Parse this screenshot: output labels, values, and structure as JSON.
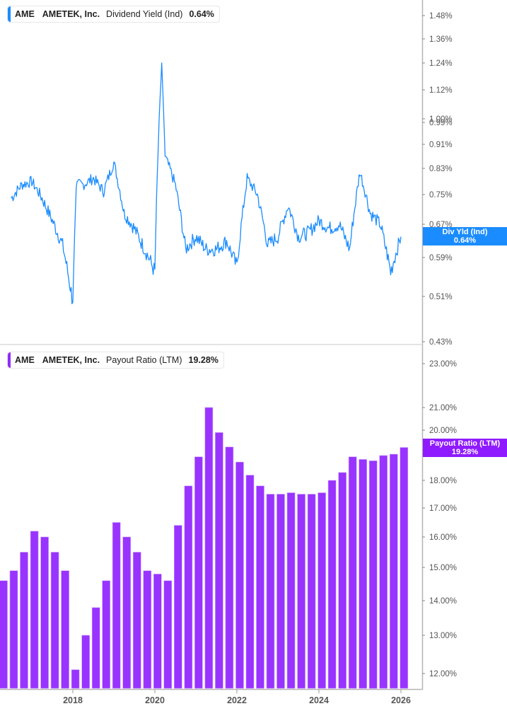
{
  "top_panel": {
    "legend": {
      "ticker": "AME",
      "company": "AMETEK, Inc.",
      "metric": "Dividend Yield (Ind)",
      "value": "0.64%",
      "color": "#1a8cff"
    },
    "flag": {
      "line1": "Div Yld (Ind)",
      "line2": "0.64%",
      "color": "#1a8cff"
    },
    "y_ticks": [
      "1.48%",
      "1.36%",
      "1.24%",
      "1.12%",
      "1.00%",
      "0.99%",
      "0.91%",
      "0.83%",
      "0.75%",
      "0.67%",
      "0.59%",
      "0.51%",
      "0.43%"
    ]
  },
  "bottom_panel": {
    "legend": {
      "ticker": "AME",
      "company": "AMETEK, Inc.",
      "metric": "Payout Ratio (LTM)",
      "value": "19.28%",
      "color": "#8f2bff"
    },
    "flag": {
      "line1": "Payout Ratio (LTM)",
      "line2": "19.28%",
      "color": "#8f1aff"
    },
    "y_ticks": [
      "23.00%",
      "21.00%",
      "20.00%",
      "19.00%",
      "18.00%",
      "17.00%",
      "16.00%",
      "15.00%",
      "14.00%",
      "13.00%",
      "12.00%"
    ]
  },
  "x_axis": {
    "ticks": [
      "2018",
      "2020",
      "2022",
      "2024",
      "2026"
    ]
  },
  "chart_data": [
    {
      "type": "line",
      "title": "AME AMETEK, Inc. Dividend Yield (Ind)",
      "series": [
        {
          "name": "Dividend Yield (Ind)",
          "color": "#1a8cff",
          "x": [
            "2016-07",
            "2016-10",
            "2017-01",
            "2017-04",
            "2017-07",
            "2017-10",
            "2018-01",
            "2018-02",
            "2018-04",
            "2018-07",
            "2018-10",
            "2019-01",
            "2019-04",
            "2019-07",
            "2019-10",
            "2020-01",
            "2020-03",
            "2020-04",
            "2020-07",
            "2020-10",
            "2021-01",
            "2021-04",
            "2021-07",
            "2021-10",
            "2022-01",
            "2022-04",
            "2022-07",
            "2022-10",
            "2023-01",
            "2023-04",
            "2023-07",
            "2023-10",
            "2024-01",
            "2024-04",
            "2024-07",
            "2024-10",
            "2025-01",
            "2025-04",
            "2025-07",
            "2025-10",
            "2026-01"
          ],
          "values": [
            0.74,
            0.78,
            0.79,
            0.74,
            0.68,
            0.62,
            0.5,
            0.78,
            0.78,
            0.8,
            0.76,
            0.85,
            0.7,
            0.66,
            0.61,
            0.56,
            1.24,
            0.87,
            0.78,
            0.61,
            0.64,
            0.61,
            0.61,
            0.63,
            0.57,
            0.8,
            0.75,
            0.62,
            0.64,
            0.72,
            0.64,
            0.65,
            0.68,
            0.66,
            0.67,
            0.61,
            0.82,
            0.7,
            0.67,
            0.56,
            0.64
          ]
        }
      ],
      "ylabel": "",
      "xlabel": "",
      "ylim": [
        0.43,
        1.52
      ],
      "y_ticks": [
        "0.43%",
        "0.51%",
        "0.59%",
        "0.67%",
        "0.75%",
        "0.83%",
        "0.91%",
        "0.99%",
        "1.00%",
        "1.12%",
        "1.24%",
        "1.36%",
        "1.48%"
      ],
      "current_value": "0.64%"
    },
    {
      "type": "bar",
      "title": "AME AMETEK, Inc. Payout Ratio (LTM)",
      "categories": [
        "2016Q3",
        "2016Q4",
        "2017Q1",
        "2017Q2",
        "2017Q3",
        "2017Q4",
        "2018Q1",
        "2018Q2",
        "2018Q3",
        "2018Q4",
        "2019Q1",
        "2019Q2",
        "2019Q3",
        "2019Q4",
        "2020Q1",
        "2020Q2",
        "2020Q3",
        "2020Q4",
        "2021Q1",
        "2021Q2",
        "2021Q3",
        "2021Q4",
        "2022Q1",
        "2022Q2",
        "2022Q3",
        "2022Q4",
        "2023Q1",
        "2023Q2",
        "2023Q3",
        "2023Q4",
        "2024Q1",
        "2024Q2",
        "2024Q3",
        "2024Q4",
        "2025Q1",
        "2025Q2",
        "2025Q3",
        "2025Q4",
        "2026Q1",
        "2026Q2"
      ],
      "series": [
        {
          "name": "Payout Ratio (LTM)",
          "color": "#9933ff",
          "values": [
            14.6,
            14.9,
            15.5,
            16.2,
            16.0,
            15.5,
            14.9,
            12.1,
            13.0,
            13.8,
            14.6,
            16.5,
            16.0,
            15.5,
            14.9,
            14.8,
            14.6,
            16.4,
            17.8,
            18.9,
            21.0,
            19.9,
            19.3,
            18.7,
            18.2,
            17.8,
            17.5,
            17.5,
            17.55,
            17.5,
            17.5,
            17.55,
            18.0,
            18.3,
            18.9,
            18.8,
            18.75,
            18.95,
            19.0,
            19.28
          ]
        }
      ],
      "ylabel": "",
      "xlabel": "",
      "ylim": [
        11.6,
        23.5
      ],
      "y_ticks": [
        "12.00%",
        "13.00%",
        "14.00%",
        "15.00%",
        "16.00%",
        "17.00%",
        "18.00%",
        "19.00%",
        "20.00%",
        "21.00%",
        "23.00%"
      ],
      "x_ticks": [
        "2018",
        "2020",
        "2022",
        "2024",
        "2026"
      ],
      "current_value": "19.28%"
    }
  ]
}
